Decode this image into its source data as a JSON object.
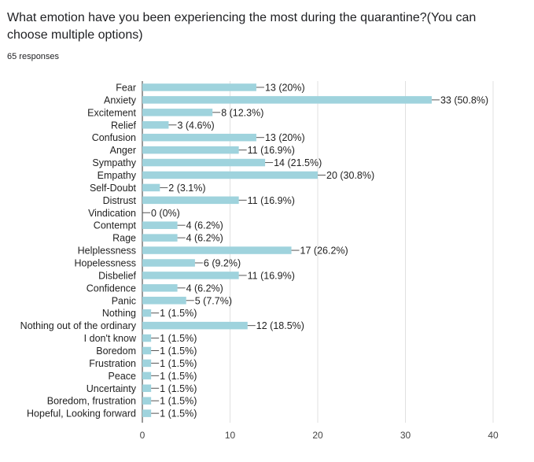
{
  "question": {
    "title": "What emotion have you been experiencing the most during the quarantine?(You can choose multiple options)",
    "responses": "65 responses"
  },
  "colors": {
    "bar": "#9fd3dd",
    "grid": "#e0e0e0",
    "axis": "#333333",
    "leader": "#555555"
  },
  "chart_data": {
    "type": "bar",
    "orientation": "horizontal",
    "categories": [
      "Fear",
      "Anxiety",
      "Excitement",
      "Relief",
      "Confusion",
      "Anger",
      "Sympathy",
      "Empathy",
      "Self-Doubt",
      "Distrust",
      "Vindication",
      "Contempt",
      "Rage",
      "Helplessness",
      "Hopelessness",
      "Disbelief",
      "Confidence",
      "Panic",
      "Nothing",
      "Nothing out of the ordinary",
      "I don't know",
      "Boredom",
      "Frustration",
      "Peace",
      "Uncertainty",
      "Boredom, frustration",
      "Hopeful, Looking forward"
    ],
    "values": [
      13,
      33,
      8,
      3,
      13,
      11,
      14,
      20,
      2,
      11,
      0,
      4,
      4,
      17,
      6,
      11,
      4,
      5,
      1,
      12,
      1,
      1,
      1,
      1,
      1,
      1,
      1
    ],
    "value_labels": [
      "13 (20%)",
      "33 (50.8%)",
      "8 (12.3%)",
      "3 (4.6%)",
      "13 (20%)",
      "11 (16.9%)",
      "14 (21.5%)",
      "20 (30.8%)",
      "2 (3.1%)",
      "11 (16.9%)",
      "0 (0%)",
      "4 (6.2%)",
      "4 (6.2%)",
      "17 (26.2%)",
      "6 (9.2%)",
      "11 (16.9%)",
      "4 (6.2%)",
      "5 (7.7%)",
      "1 (1.5%)",
      "12 (18.5%)",
      "1 (1.5%)",
      "1 (1.5%)",
      "1 (1.5%)",
      "1 (1.5%)",
      "1 (1.5%)",
      "1 (1.5%)",
      "1 (1.5%)"
    ],
    "xlim": [
      0,
      40
    ],
    "xticks": [
      0,
      10,
      20,
      30,
      40
    ],
    "grid": true,
    "legend": "none"
  }
}
